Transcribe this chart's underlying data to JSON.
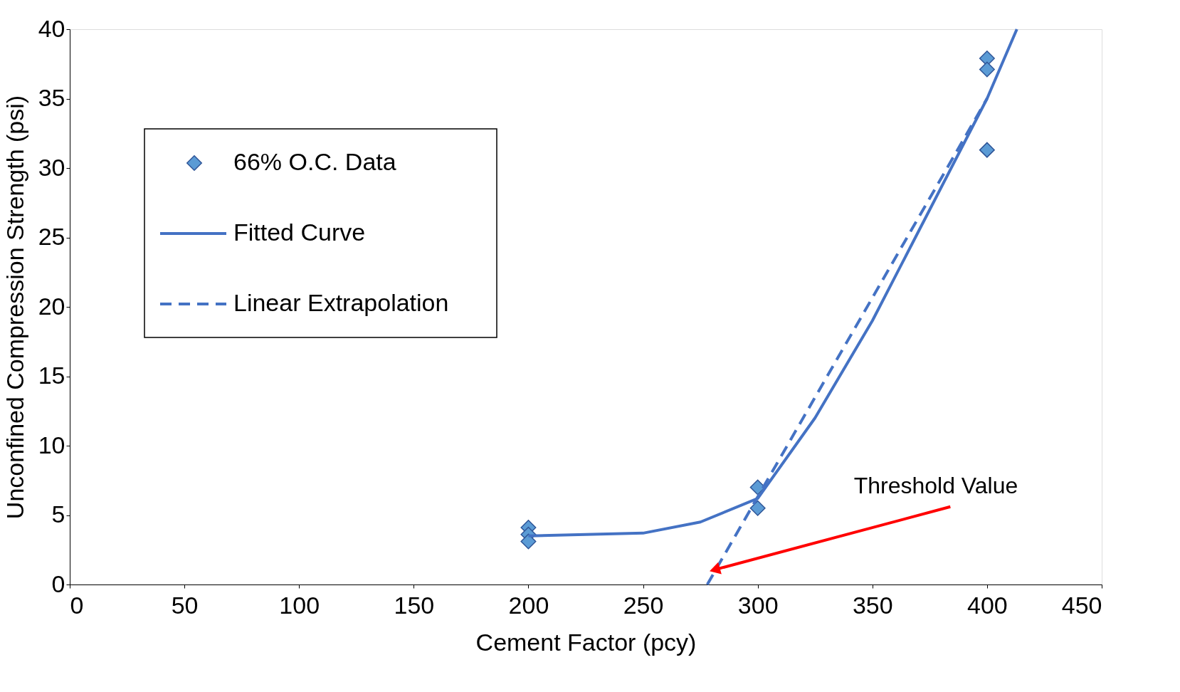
{
  "chart_data": {
    "type": "scatter",
    "xlabel": "Cement Factor (pcy)",
    "ylabel": "Unconfined Compression Strength (psi)",
    "xlim": [
      0,
      450
    ],
    "xticks": [
      0,
      50,
      100,
      150,
      200,
      250,
      300,
      350,
      400,
      450
    ],
    "ylim": [
      0,
      40
    ],
    "yticks": [
      0,
      5,
      10,
      15,
      20,
      25,
      30,
      35,
      40
    ],
    "grid": false,
    "legend": "top left",
    "series": [
      {
        "name": "66% O.C. Data",
        "marker": "diamond",
        "color": "#5b9bd5",
        "x": [
          200,
          200,
          200,
          300,
          300,
          400,
          400,
          400
        ],
        "values": [
          4.1,
          3.6,
          3.1,
          7.0,
          5.5,
          37.9,
          37.1,
          31.3
        ]
      },
      {
        "name": "Fitted Curve",
        "type": "line",
        "line_style": "solid",
        "color": "#4472c4",
        "x": [
          200,
          250,
          275,
          300,
          325,
          350,
          375,
          400,
          413
        ],
        "values": [
          3.5,
          3.7,
          4.5,
          6.2,
          12,
          19,
          27,
          35,
          40
        ]
      },
      {
        "name": "Linear Extrapolation",
        "type": "line",
        "line_style": "dashed",
        "color": "#4472c4",
        "x": [
          278,
          400
        ],
        "values": [
          0,
          35
        ]
      }
    ],
    "annotations": [
      {
        "text": "Threshold Value",
        "x": 282,
        "y": 1.1
      }
    ]
  }
}
